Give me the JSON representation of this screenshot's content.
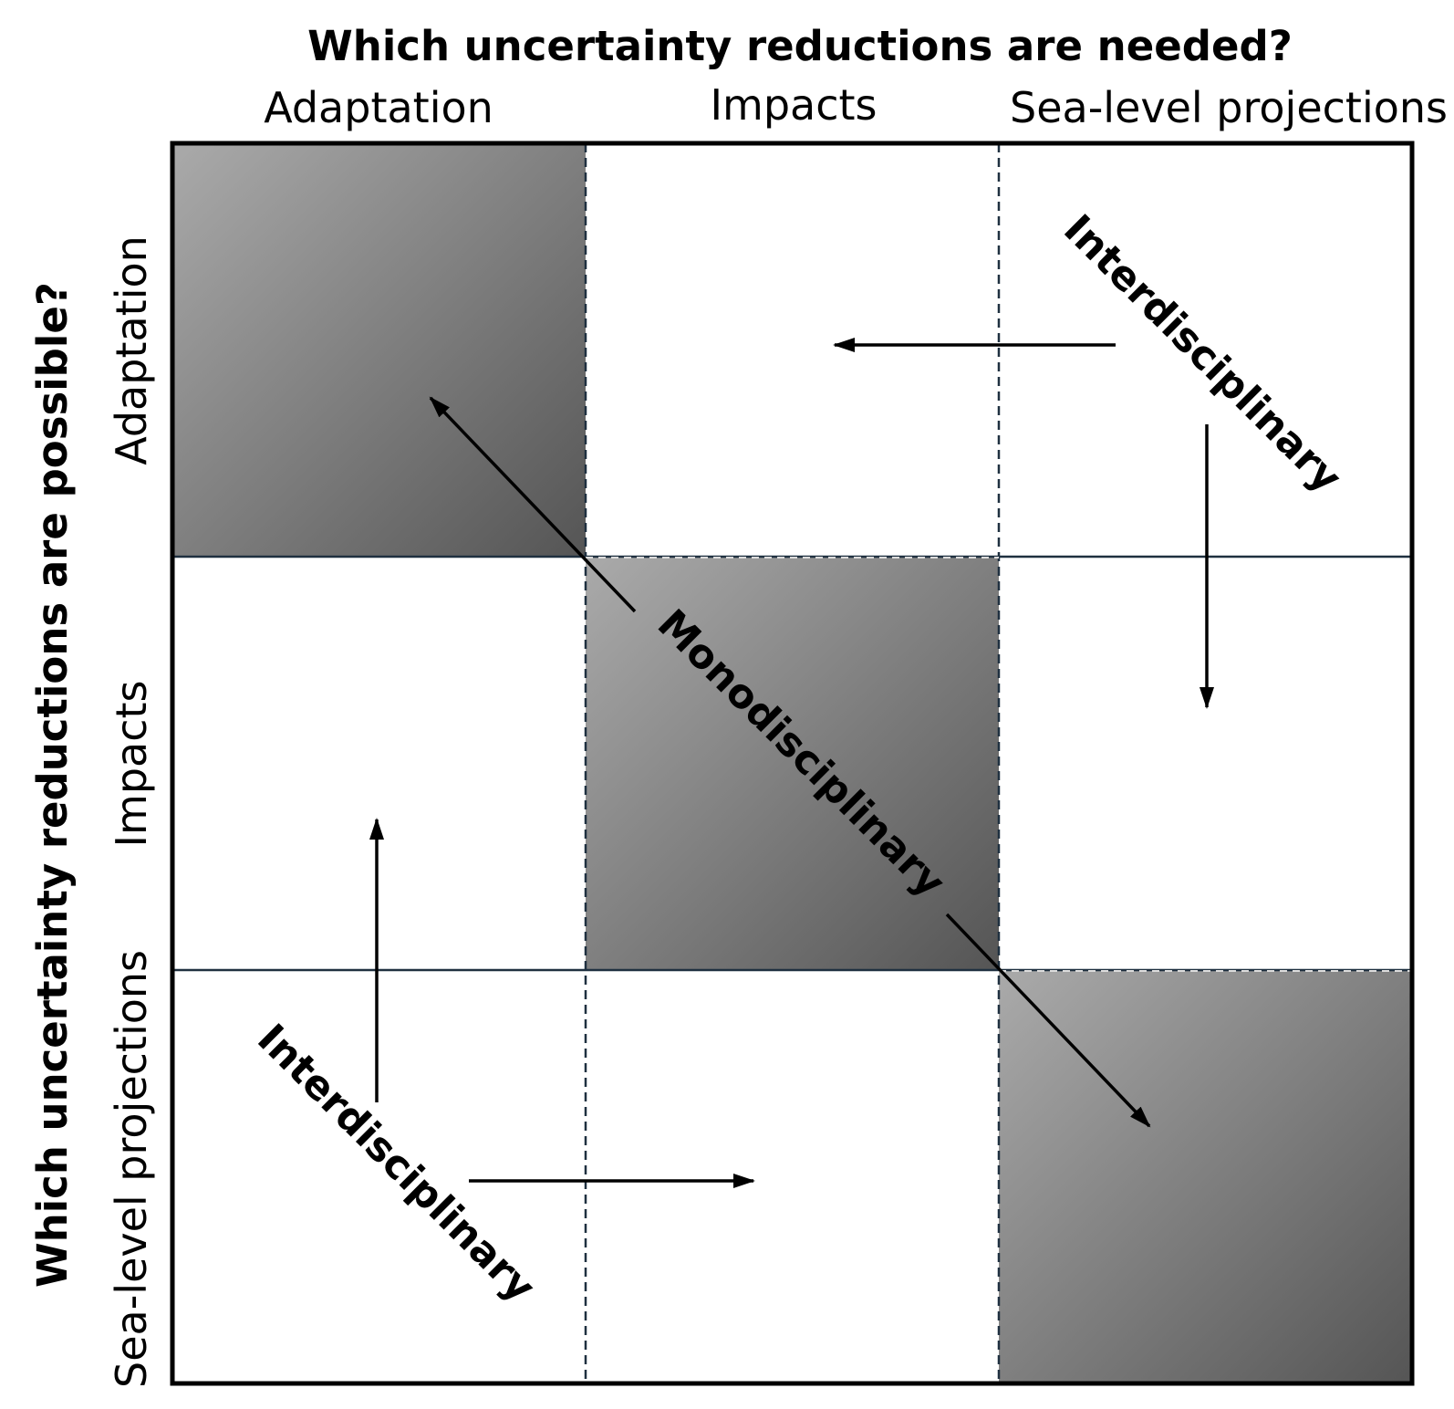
{
  "top_title": "Which uncertainty reductions are needed?",
  "left_title": "Which uncertainty reductions are possible?",
  "columns": [
    "Adaptation",
    "Impacts",
    "Sea-level projections"
  ],
  "rows": [
    "Adaptation",
    "Impacts",
    "Sea-level projections"
  ],
  "labels": {
    "mono": "Monodisciplinary",
    "inter_upper": "Interdisciplinary",
    "inter_lower": "Interdisciplinary"
  },
  "colors": {
    "shade_light": "#aaaaaa",
    "shade_dark": "#555555",
    "grid_line": "#1f3040",
    "frame": "#000000"
  }
}
